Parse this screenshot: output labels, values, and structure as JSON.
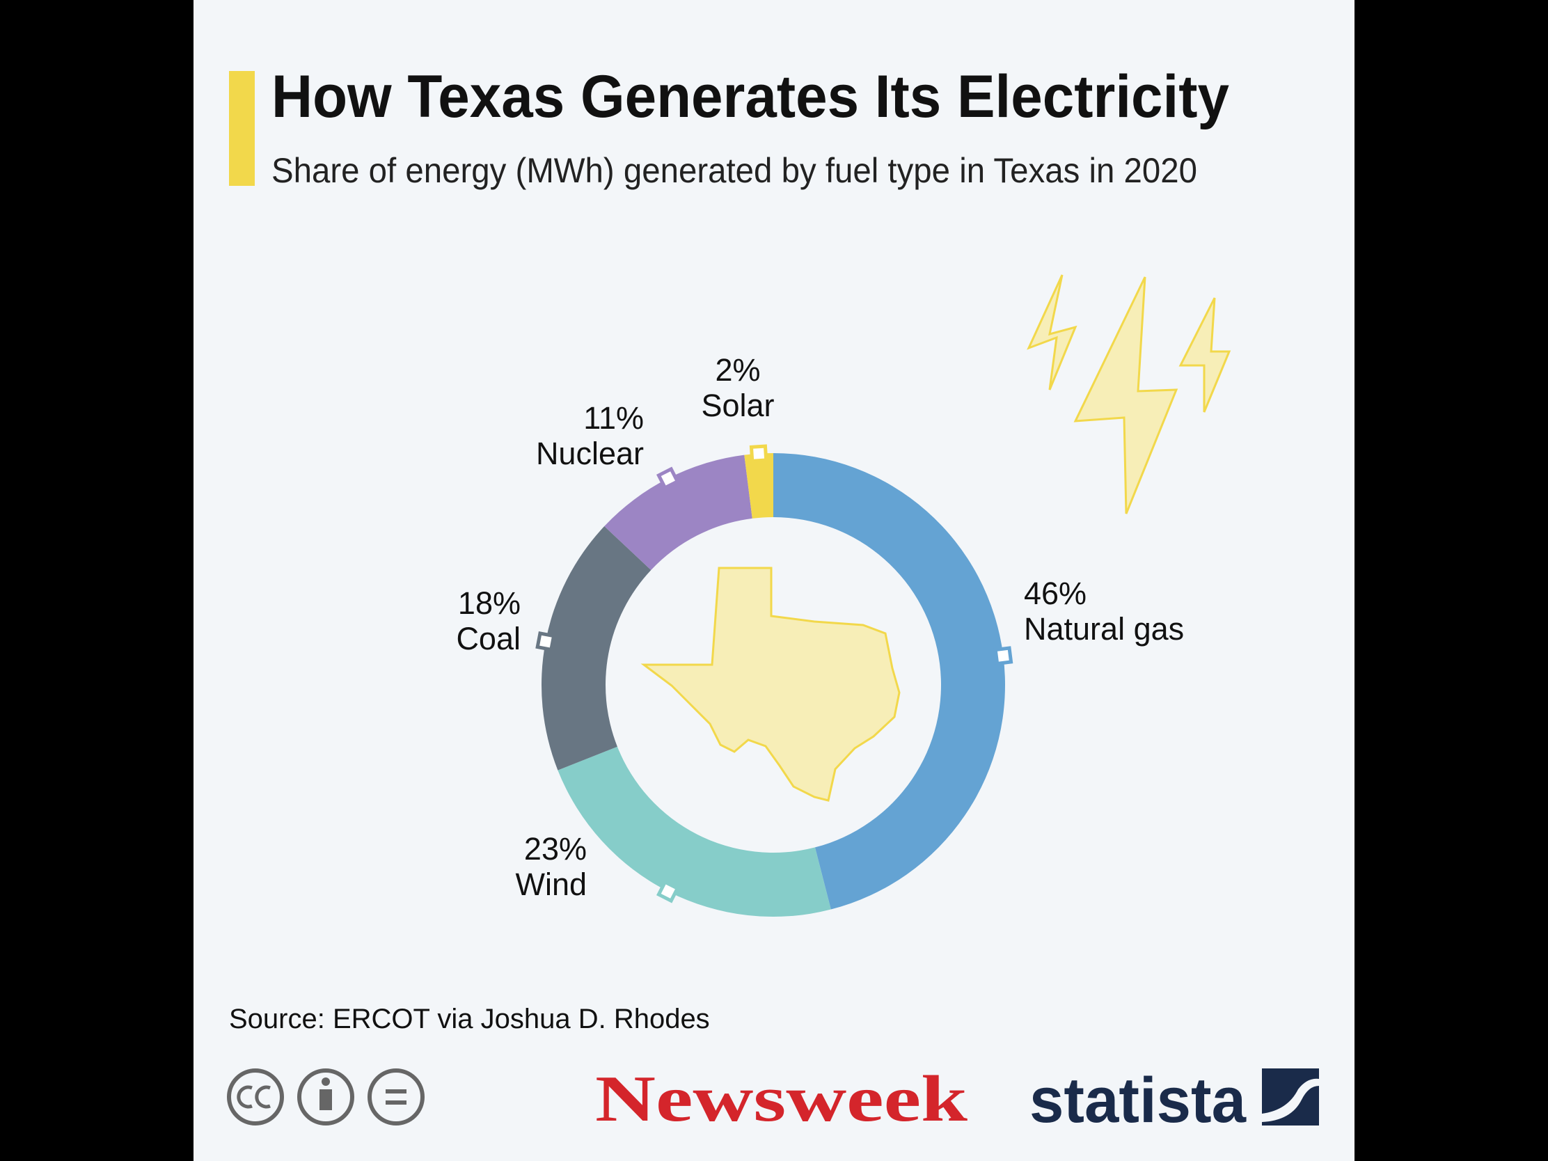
{
  "chart_data": {
    "type": "donut",
    "title": "How Texas Generates Its Electricity",
    "subtitle": "Share of energy (MWh) generated by fuel type in Texas in 2020",
    "categories": [
      "Natural gas",
      "Wind",
      "Coal",
      "Nuclear",
      "Solar"
    ],
    "values": [
      46,
      23,
      18,
      11,
      2
    ],
    "value_labels": [
      "46%",
      "23%",
      "18%",
      "11%",
      "2%"
    ],
    "colors": [
      "#64a3d3",
      "#86cdc9",
      "#687683",
      "#9c85c4",
      "#f2d84b"
    ],
    "source": "Source: ERCOT via Joshua D. Rhodes"
  },
  "footer": {
    "brands": [
      "Newsweek",
      "statista"
    ]
  }
}
